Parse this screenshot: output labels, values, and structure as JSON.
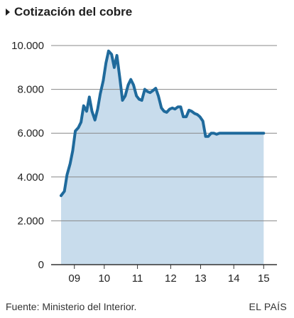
{
  "title": "Cotización del cobre",
  "source": "Fuente: Ministerio del Interior.",
  "brand": "EL PAÍS",
  "colors": {
    "line": "#1f6a9c",
    "area": "#c8dcec",
    "grid": "#888888",
    "axis": "#333333"
  },
  "chart_data": {
    "type": "area",
    "title": "Cotización del cobre",
    "xlabel": "",
    "ylabel": "",
    "ylim": [
      0,
      10000
    ],
    "xlim": [
      2008.6,
      2015.4
    ],
    "y_ticks": [
      0,
      2000,
      4000,
      6000,
      8000,
      10000
    ],
    "y_tick_labels": [
      "0",
      "2.000",
      "4.000",
      "6.000",
      "8.000",
      "10.000"
    ],
    "x_tick_labels": [
      {
        "x": 2009.3,
        "label": "09"
      },
      {
        "x": 2010.2,
        "label": "10"
      },
      {
        "x": 2011.2,
        "label": "11"
      },
      {
        "x": 2012.2,
        "label": "12"
      },
      {
        "x": 2013.1,
        "label": "13"
      },
      {
        "x": 2014.1,
        "label": "14"
      },
      {
        "x": 2015.0,
        "label": "15"
      }
    ],
    "grid": true,
    "series": [
      {
        "x": [
          2008.9,
          2009.0,
          2009.08,
          2009.17,
          2009.25,
          2009.33,
          2009.42,
          2009.5,
          2009.58,
          2009.67,
          2009.75,
          2009.83,
          2009.92,
          2010.0,
          2010.08,
          2010.17,
          2010.25,
          2010.33,
          2010.42,
          2010.5,
          2010.58,
          2010.67,
          2010.75,
          2010.83,
          2010.92,
          2011.0,
          2011.08,
          2011.17,
          2011.25,
          2011.33,
          2011.42,
          2011.5,
          2011.58,
          2011.67,
          2011.75,
          2011.83,
          2011.92,
          2012.0,
          2012.08,
          2012.17,
          2012.25,
          2012.33,
          2012.42,
          2012.5,
          2012.58,
          2012.67,
          2012.75,
          2012.83,
          2012.92,
          2013.0,
          2013.08,
          2013.17,
          2013.25,
          2013.33,
          2013.42,
          2013.5,
          2013.58,
          2013.67,
          2013.75,
          2013.83,
          2013.92,
          2014.0,
          2014.08,
          2014.17,
          2014.25,
          2014.33,
          2014.42,
          2014.5,
          2014.58,
          2014.67,
          2014.75,
          2014.83,
          2014.92,
          2015.0
        ],
        "values": [
          3150,
          3350,
          4100,
          4600,
          5200,
          6100,
          6250,
          6500,
          7250,
          7000,
          7650,
          7000,
          6600,
          7100,
          7800,
          8400,
          9200,
          9750,
          9600,
          9000,
          9550,
          8500,
          7500,
          7700,
          8200,
          8450,
          8200,
          7700,
          7550,
          7500,
          8000,
          7900,
          7850,
          7950,
          8050,
          7700,
          7150,
          7000,
          6950,
          7100,
          7150,
          7100,
          7200,
          7200,
          6750,
          6750,
          7050,
          7000,
          6900,
          6850,
          6750,
          6550,
          5850,
          5850,
          6000,
          6000,
          5950,
          6000,
          6000,
          6000,
          6000,
          6000,
          6000,
          6000,
          6000,
          6000,
          6000,
          6000,
          6000,
          6000,
          6000,
          6000,
          6000,
          6000
        ]
      }
    ]
  }
}
